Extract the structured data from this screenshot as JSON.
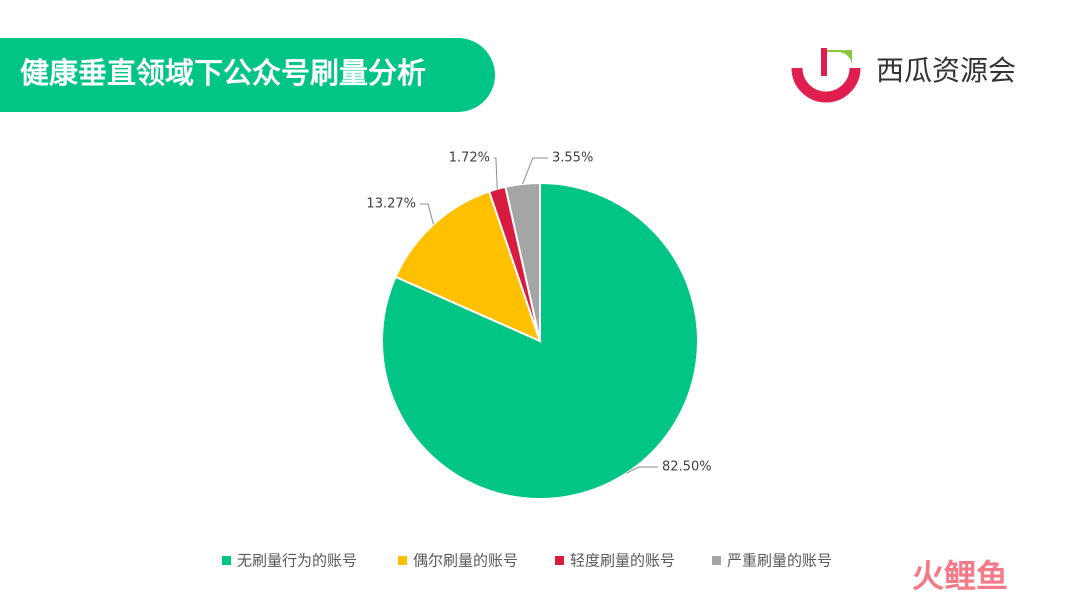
{
  "chart_data": {
    "type": "pie",
    "title": "健康垂直领域下公众号刷量分析",
    "brand": "西瓜资源会",
    "watermark": "火鲤鱼",
    "categories": [
      "无刷量行为的账号",
      "偶尔刷量的账号",
      "轻度刷量的账号",
      "严重刷量的账号"
    ],
    "values": [
      82.5,
      13.27,
      1.72,
      3.55
    ],
    "value_labels": [
      "82.50%",
      "13.27%",
      "1.72%",
      "3.55%"
    ],
    "colors": [
      "#00c584",
      "#ffc000",
      "#d81b3f",
      "#a5a5a5"
    ],
    "legend": "bottom"
  }
}
